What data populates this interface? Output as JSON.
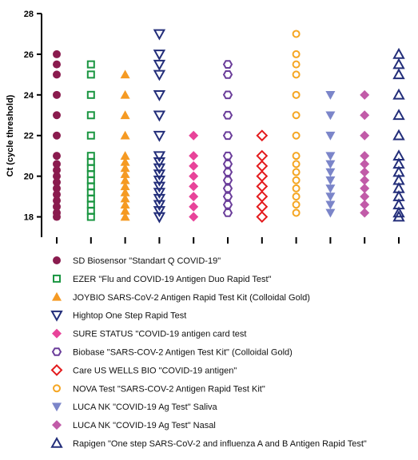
{
  "chart_data": {
    "type": "scatter",
    "title": "",
    "xlabel": "",
    "ylabel": "Ct (cycle threshold)",
    "ylim": [
      17,
      28
    ],
    "yticks": [
      18,
      20,
      22,
      24,
      26,
      28
    ],
    "grid": false,
    "legend_position": "bottom",
    "series": [
      {
        "name": "SD Biosensor \"Standart Q COVID-19\"",
        "color": "#8a1b4e",
        "marker": "circle-filled",
        "values": [
          26,
          25.5,
          25,
          24,
          23,
          22,
          21,
          20.6,
          20.3,
          20,
          19.7,
          19.4,
          19.1,
          18.8,
          18.5,
          18.2,
          18
        ]
      },
      {
        "name": "EZER \"Flu and COVID-19 Antigen Duo Rapid Test\"",
        "color": "#1a9641",
        "marker": "square-open",
        "values": [
          25.5,
          25,
          24,
          23,
          22,
          21,
          20.7,
          20.4,
          20.1,
          19.8,
          19.5,
          19.2,
          18.9,
          18.6,
          18.3,
          18
        ]
      },
      {
        "name": "JOYBIO SARS-CoV-2 Antigen Rapid Test Kit (Colloidal Gold)",
        "color": "#f59a23",
        "marker": "triangle-up-filled",
        "values": [
          25,
          24,
          23,
          22,
          21,
          20.7,
          20.4,
          20.1,
          19.8,
          19.5,
          19.2,
          18.9,
          18.6,
          18.3,
          18
        ]
      },
      {
        "name": "Hightop One Step Rapid Test",
        "color": "#232e7a",
        "marker": "triangle-down-open",
        "values": [
          27,
          26,
          25.5,
          25,
          24,
          23,
          22,
          21,
          20.7,
          20.4,
          20.1,
          19.8,
          19.5,
          19.2,
          18.9,
          18.6,
          18.3,
          18
        ]
      },
      {
        "name": "SURE STATUS \"COVID-19 antigen card test",
        "color": "#e8449a",
        "marker": "diamond-filled",
        "values": [
          22,
          21,
          20.5,
          20,
          19.5,
          19,
          18.5,
          18
        ]
      },
      {
        "name": "Biobase \"SARS-COV-2 Antigen Test Kit\" (Colloidal Gold)",
        "color": "#6a3d9a",
        "marker": "hexagon-open",
        "values": [
          25.5,
          25,
          24,
          23,
          22,
          21,
          20.6,
          20.2,
          19.8,
          19.4,
          19,
          18.6,
          18.2
        ]
      },
      {
        "name": "Care US WELLS BIO \"COVID-19 antigen\"",
        "color": "#e31a1c",
        "marker": "diamond-open",
        "values": [
          22,
          21,
          20.5,
          20,
          19.5,
          19,
          18.5,
          18
        ]
      },
      {
        "name": "NOVA Test \"SARS-COV-2 Antigen Rapid Test Kit\"",
        "color": "#f5a623",
        "marker": "circle-open",
        "values": [
          27,
          26,
          25.5,
          25,
          24,
          23,
          22,
          21,
          20.6,
          20.2,
          19.8,
          19.4,
          19,
          18.6,
          18.2
        ]
      },
      {
        "name": "LUCA NK \"COVID-19 Ag Test\" Saliva",
        "color": "#7b85c9",
        "marker": "triangle-down-filled",
        "values": [
          24,
          23,
          22,
          21,
          20.6,
          20.2,
          19.8,
          19.4,
          19,
          18.6,
          18.2
        ]
      },
      {
        "name": "LUCA NK \"COVID-19 Ag Test\" Nasal",
        "color": "#c15ba8",
        "marker": "diamond-filled",
        "values": [
          24,
          23,
          22,
          21,
          20.6,
          20.2,
          19.8,
          19.4,
          19,
          18.6,
          18.2
        ]
      },
      {
        "name": "Rapigen \"One step SARS-CoV-2 and influenza A and B Antigen Rapid Test\"",
        "color": "#232e7a",
        "marker": "triangle-up-open",
        "values": [
          26,
          25.5,
          25,
          24,
          23,
          22,
          21,
          20.6,
          20.2,
          19.8,
          19.4,
          19,
          18.6,
          18.2,
          18
        ]
      }
    ]
  }
}
